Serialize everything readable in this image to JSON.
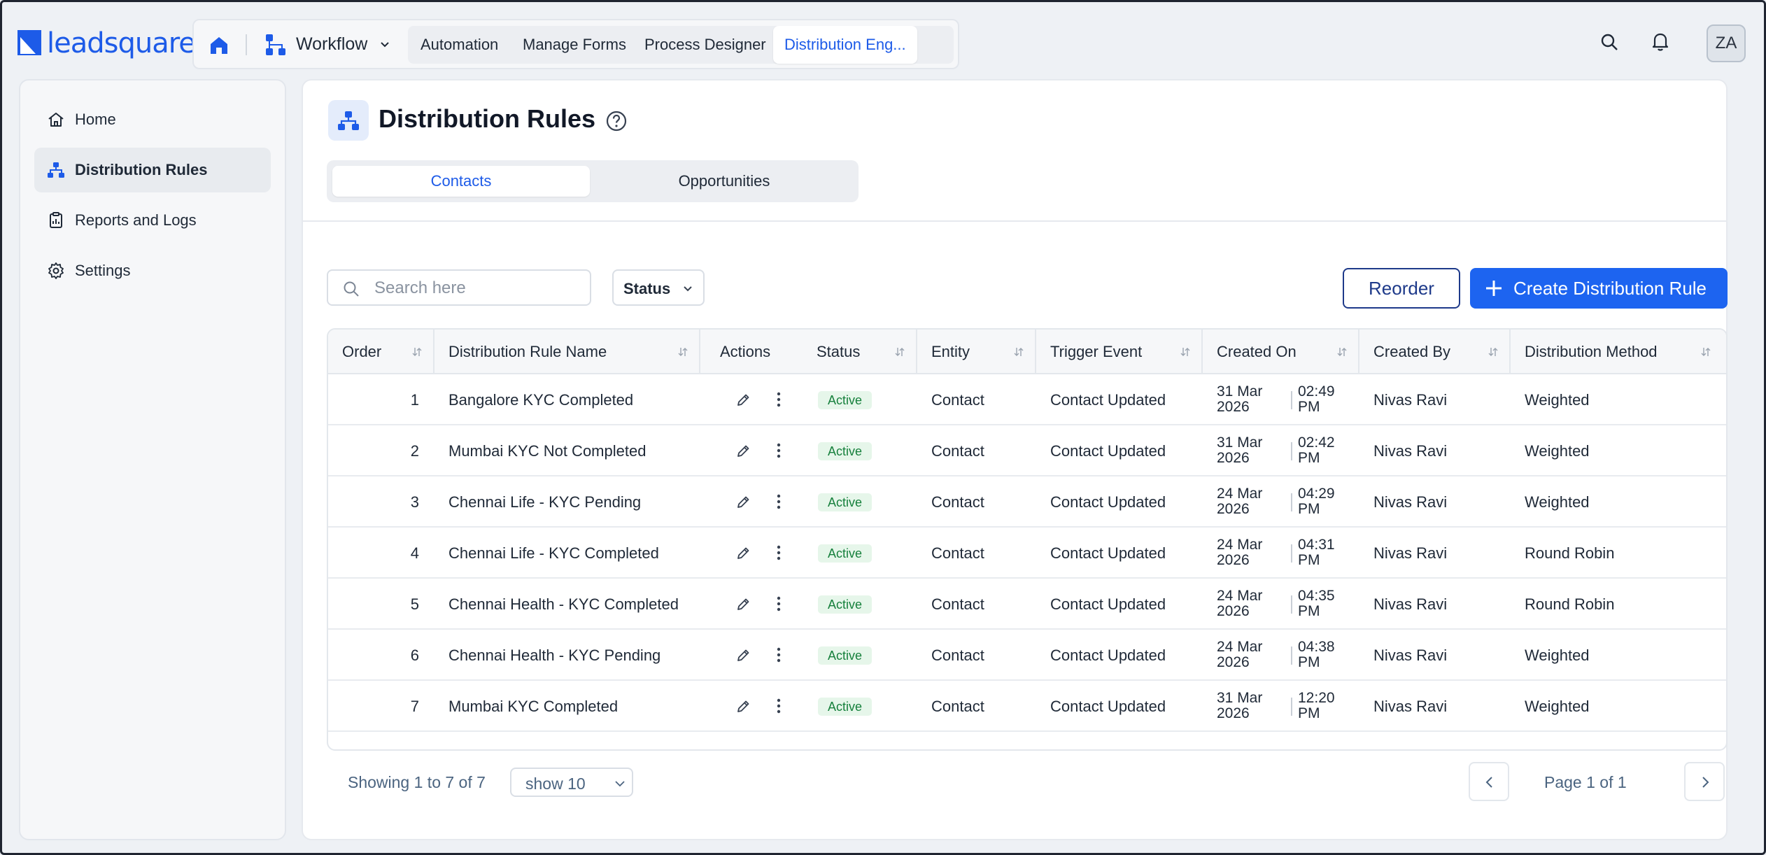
{
  "brand": {
    "logo_text": "leadsquared",
    "accent": "#1d5be8"
  },
  "topnav": {
    "workflow_label": "Workflow",
    "tabs": [
      {
        "label": "Automation"
      },
      {
        "label": "Manage Forms"
      },
      {
        "label": "Process Designer"
      },
      {
        "label": "Distribution Eng..."
      }
    ],
    "active_tab": "Distribution Eng...",
    "avatar_initials": "ZA"
  },
  "sidebar": {
    "items": [
      {
        "label": "Home",
        "icon": "home-icon"
      },
      {
        "label": "Distribution Rules",
        "icon": "hierarchy-icon"
      },
      {
        "label": "Reports and Logs",
        "icon": "report-icon"
      },
      {
        "label": "Settings",
        "icon": "gear-icon"
      }
    ],
    "active": "Distribution Rules"
  },
  "main": {
    "title": "Distribution Rules",
    "segments": [
      {
        "label": "Contacts"
      },
      {
        "label": "Opportunities"
      }
    ],
    "active_segment": "Contacts",
    "search": {
      "placeholder": "Search here",
      "value": ""
    },
    "status_filter": "Status",
    "reorder_label": "Reorder",
    "create_label": "Create Distribution Rule"
  },
  "table": {
    "columns": [
      {
        "label": "Order"
      },
      {
        "label": "Distribution Rule Name"
      },
      {
        "label": "Actions"
      },
      {
        "label": "Status"
      },
      {
        "label": "Entity"
      },
      {
        "label": "Trigger Event"
      },
      {
        "label": "Created On"
      },
      {
        "label": "Created By"
      },
      {
        "label": "Distribution Method"
      }
    ],
    "rows": [
      {
        "order": "1",
        "name": "Bangalore KYC Completed",
        "status": "Active",
        "entity": "Contact",
        "trigger": "Contact Updated",
        "date_day": "31 Mar",
        "date_year": "2026",
        "time_hm": "02:49",
        "time_ampm": "PM",
        "created_by": "Nivas Ravi",
        "method": "Weighted"
      },
      {
        "order": "2",
        "name": "Mumbai KYC Not Completed",
        "status": "Active",
        "entity": "Contact",
        "trigger": "Contact Updated",
        "date_day": "31 Mar",
        "date_year": "2026",
        "time_hm": "02:42",
        "time_ampm": "PM",
        "created_by": "Nivas Ravi",
        "method": "Weighted"
      },
      {
        "order": "3",
        "name": "Chennai Life - KYC Pending",
        "status": "Active",
        "entity": "Contact",
        "trigger": "Contact Updated",
        "date_day": "24 Mar",
        "date_year": "2026",
        "time_hm": "04:29",
        "time_ampm": "PM",
        "created_by": "Nivas Ravi",
        "method": "Weighted"
      },
      {
        "order": "4",
        "name": "Chennai Life - KYC Completed",
        "status": "Active",
        "entity": "Contact",
        "trigger": "Contact Updated",
        "date_day": "24 Mar",
        "date_year": "2026",
        "time_hm": "04:31",
        "time_ampm": "PM",
        "created_by": "Nivas Ravi",
        "method": "Round Robin"
      },
      {
        "order": "5",
        "name": "Chennai Health - KYC Completed",
        "status": "Active",
        "entity": "Contact",
        "trigger": "Contact Updated",
        "date_day": "24 Mar",
        "date_year": "2026",
        "time_hm": "04:35",
        "time_ampm": "PM",
        "created_by": "Nivas Ravi",
        "method": "Round Robin"
      },
      {
        "order": "6",
        "name": "Chennai Health - KYC Pending",
        "status": "Active",
        "entity": "Contact",
        "trigger": "Contact Updated",
        "date_day": "24 Mar",
        "date_year": "2026",
        "time_hm": "04:38",
        "time_ampm": "PM",
        "created_by": "Nivas Ravi",
        "method": "Weighted"
      },
      {
        "order": "7",
        "name": "Mumbai KYC Completed",
        "status": "Active",
        "entity": "Contact",
        "trigger": "Contact Updated",
        "date_day": "31 Mar",
        "date_year": "2026",
        "time_hm": "12:20",
        "time_ampm": "PM",
        "created_by": "Nivas Ravi",
        "method": "Weighted"
      }
    ]
  },
  "footer": {
    "showing": "Showing 1 to 7 of 7",
    "page_size": "show 10",
    "page_label": "Page 1 of 1"
  }
}
